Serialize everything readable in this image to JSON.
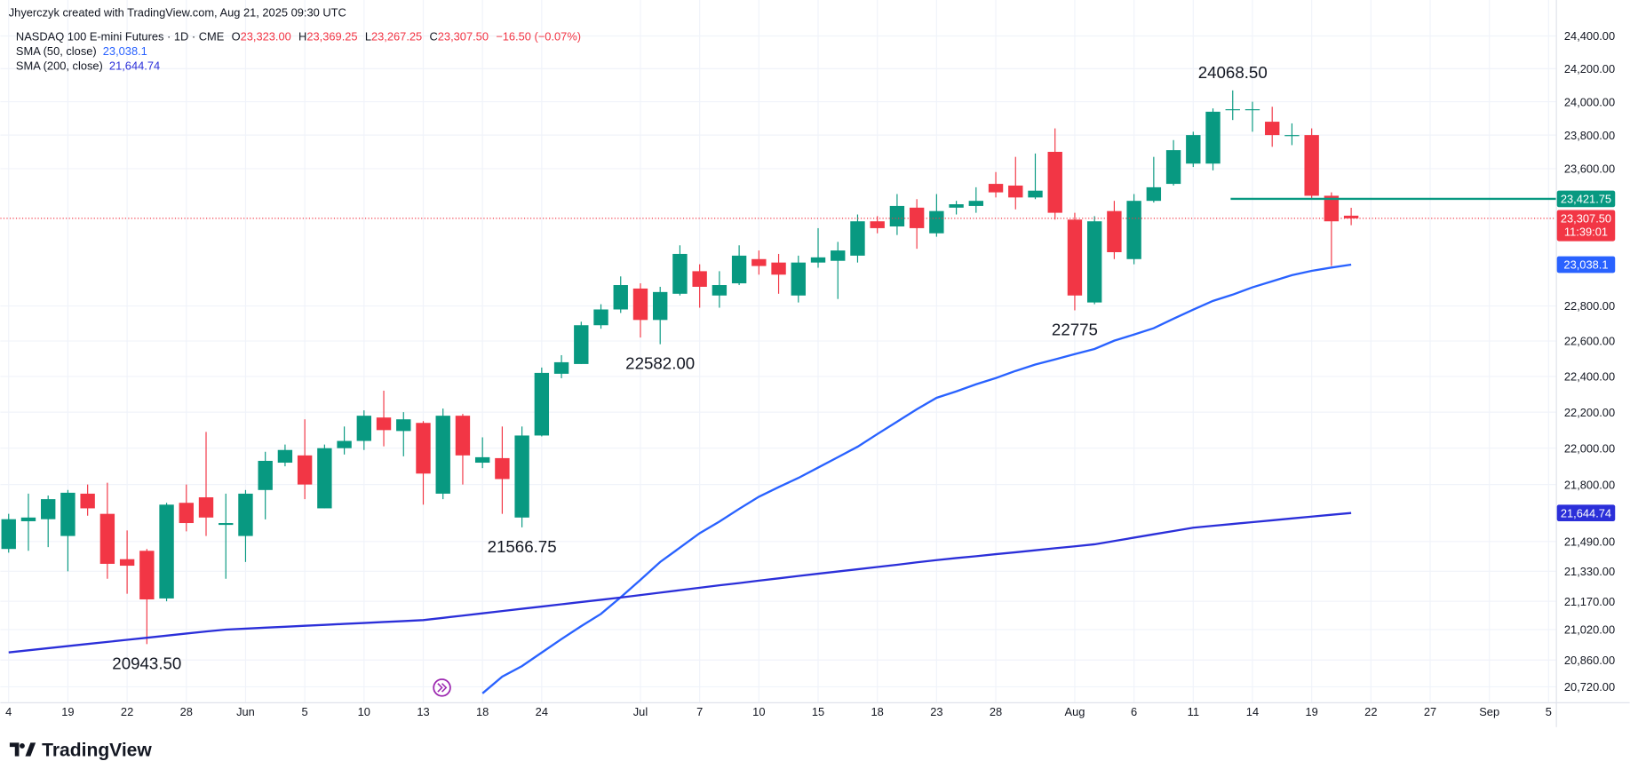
{
  "header": {
    "author_line": "Jhyerczyk created with TradingView.com, Aug 21, 2025 09:30 UTC"
  },
  "branding": "TradingView",
  "chart_data": {
    "type": "candlestick",
    "legend": {
      "symbol": "NASDAQ 100 E-mini Futures · 1D · CME",
      "fields": [
        {
          "key": "O",
          "text": "23,323.00"
        },
        {
          "key": "H",
          "text": "23,369.25"
        },
        {
          "key": "L",
          "text": "23,267.25"
        },
        {
          "key": "C",
          "text": "23,307.50"
        }
      ],
      "change": "−16.50 (−0.07%)"
    },
    "up_color": "#089981",
    "down_color": "#f23645",
    "log_scale": true,
    "grid": true,
    "ylim": [
      20640,
      24570
    ],
    "yticks": [
      {
        "value": 24400,
        "label": "24,400.00"
      },
      {
        "value": 24200,
        "label": "24,200.00"
      },
      {
        "value": 24000,
        "label": "24,000.00"
      },
      {
        "value": 23800,
        "label": "23,800.00"
      },
      {
        "value": 23600,
        "label": "23,600.00"
      },
      {
        "value": 22800,
        "label": "22,800.00"
      },
      {
        "value": 22600,
        "label": "22,600.00"
      },
      {
        "value": 22400,
        "label": "22,400.00"
      },
      {
        "value": 22200,
        "label": "22,200.00"
      },
      {
        "value": 22000,
        "label": "22,000.00"
      },
      {
        "value": 21800,
        "label": "21,800.00"
      },
      {
        "value": 21490,
        "label": "21,490.00"
      },
      {
        "value": 21330,
        "label": "21,330.00"
      },
      {
        "value": 21170,
        "label": "21,170.00"
      },
      {
        "value": 21020,
        "label": "21,020.00"
      },
      {
        "value": 20860,
        "label": "20,860.00"
      },
      {
        "value": 20720,
        "label": "20,720.00"
      }
    ],
    "categories": [
      "4",
      null,
      null,
      "19",
      null,
      null,
      "22",
      null,
      null,
      "28",
      null,
      null,
      "Jun",
      null,
      null,
      "5",
      null,
      null,
      "10",
      null,
      null,
      "13",
      null,
      null,
      "18",
      null,
      null,
      "24",
      null,
      null,
      null,
      null,
      "Jul",
      null,
      null,
      "7",
      null,
      null,
      "10",
      null,
      null,
      "15",
      null,
      null,
      "18",
      null,
      null,
      "23",
      null,
      null,
      "28",
      null,
      null,
      null,
      "Aug",
      null,
      null,
      "6",
      null,
      null,
      "11",
      null,
      null,
      "14",
      null,
      null,
      "19",
      null,
      null,
      "22",
      null,
      null,
      "27",
      null,
      null,
      "Sep",
      null,
      null,
      "5"
    ],
    "open": [
      21450,
      21600,
      21611,
      21520,
      21750,
      21640,
      21395,
      21440,
      21185,
      21700,
      21730,
      21580,
      21520,
      21770,
      21920,
      21960,
      21670,
      22000,
      22040,
      22170,
      22095,
      22140,
      21750,
      22180,
      21920,
      21945,
      21620,
      22070,
      22415,
      22470,
      22690,
      22780,
      22900,
      22720,
      22870,
      23000,
      22860,
      22930,
      23070,
      23050,
      22860,
      23050,
      23060,
      23090,
      23290,
      23260,
      23370,
      23220,
      23370,
      23380,
      23510,
      23500,
      23430,
      23700,
      23300,
      22820,
      23350,
      23070,
      23410,
      23510,
      23630,
      23630,
      23950,
      23950,
      23880,
      23795,
      23800,
      23440,
      23323,
      null,
      null,
      null,
      null,
      null,
      null,
      null,
      null,
      null,
      null
    ],
    "high": [
      21640,
      21750,
      21740,
      21770,
      21800,
      21810,
      21550,
      21450,
      21700,
      21800,
      22090,
      21750,
      21770,
      21980,
      22020,
      22160,
      22020,
      22120,
      22210,
      22320,
      22200,
      22150,
      22220,
      22190,
      22060,
      22120,
      22120,
      22450,
      22520,
      22710,
      22810,
      22970,
      22930,
      22910,
      23150,
      23040,
      23000,
      23150,
      23120,
      23100,
      23090,
      23250,
      23170,
      23330,
      23320,
      23450,
      23420,
      23450,
      23410,
      23490,
      23580,
      23670,
      23690,
      23840,
      23340,
      23320,
      23410,
      23450,
      23670,
      23770,
      23820,
      23960,
      24068.5,
      24000,
      23970,
      23870,
      23840,
      23460,
      23369.25,
      null,
      null,
      null,
      null,
      null,
      null,
      null,
      null,
      null,
      null
    ],
    "low": [
      21430,
      21440,
      21460,
      21330,
      21630,
      21290,
      21210,
      20943.5,
      21170,
      21545,
      21520,
      21290,
      21380,
      21610,
      21900,
      21720,
      21670,
      21965,
      21990,
      22010,
      21955,
      21690,
      21720,
      21800,
      21890,
      21640,
      21566.75,
      22065,
      22390,
      22470,
      22670,
      22760,
      22620,
      22582,
      22860,
      22790,
      22790,
      22920,
      22980,
      22870,
      22820,
      23020,
      22840,
      23050,
      23220,
      23210,
      23130,
      23200,
      23330,
      23340,
      23430,
      23360,
      23420,
      23300,
      22775,
      22810,
      23070,
      23040,
      23400,
      23500,
      23610,
      23590,
      23890,
      23820,
      23730,
      23740,
      23420,
      23030,
      23267.25,
      null,
      null,
      null,
      null,
      null,
      null,
      null,
      null,
      null,
      null
    ],
    "close": [
      21611,
      21620,
      21720,
      21755,
      21670,
      21370,
      21360,
      21180,
      21690,
      21590,
      21620,
      21590,
      21750,
      21930,
      21990,
      21800,
      22000,
      22040,
      22180,
      22100,
      22160,
      21860,
      22180,
      21960,
      21950,
      21830,
      22070,
      22420,
      22480,
      22690,
      22780,
      22920,
      22720,
      22880,
      23100,
      22910,
      22920,
      23090,
      23030,
      22980,
      23050,
      23080,
      23120,
      23290,
      23250,
      23380,
      23250,
      23350,
      23390,
      23410,
      23460,
      23430,
      23470,
      23340,
      22860,
      23290,
      23110,
      23410,
      23490,
      23710,
      23800,
      23940,
      23955,
      23955,
      23800,
      23800,
      23440,
      23290,
      23307.5,
      null,
      null,
      null,
      null,
      null,
      null,
      null,
      null,
      null,
      null
    ],
    "series": [
      {
        "name": "SMA (50, close)",
        "color": "#2962ff",
        "last_label": "23,038.1",
        "values": [
          null,
          null,
          null,
          null,
          null,
          null,
          null,
          null,
          null,
          null,
          null,
          null,
          null,
          null,
          null,
          null,
          null,
          null,
          null,
          null,
          null,
          null,
          null,
          null,
          20686,
          20773,
          20828,
          20899,
          20970,
          21038,
          21103,
          21191,
          21284,
          21380,
          21457,
          21535,
          21598,
          21667,
          21733,
          21786,
          21836,
          21893,
          21950,
          22008,
          22078,
          22147,
          22216,
          22280,
          22316,
          22356,
          22391,
          22431,
          22467,
          22496,
          22526,
          22555,
          22602,
          22637,
          22673,
          22727,
          22779,
          22829,
          22865,
          22907,
          22942,
          22977,
          23002,
          23021,
          23038.1,
          null,
          null,
          null,
          null,
          null,
          null,
          null,
          null,
          null,
          null
        ]
      },
      {
        "name": "SMA (200, close)",
        "color": "#2b2fd9",
        "last_label": "21,644.74",
        "values": [
          20900,
          20911,
          20922,
          20933,
          20944,
          20955,
          20966,
          20977,
          20988,
          20999,
          21010,
          21020,
          21025,
          21030,
          21035,
          21040,
          21045,
          21050,
          21055,
          21060,
          21065,
          21070,
          21082,
          21094,
          21106,
          21118,
          21130,
          21142,
          21154,
          21166,
          21178,
          21190,
          21203,
          21216,
          21229,
          21242,
          21255,
          21267,
          21280,
          21292,
          21305,
          21317,
          21329,
          21341,
          21353,
          21365,
          21378,
          21390,
          21401,
          21411,
          21422,
          21432,
          21443,
          21454,
          21464,
          21475,
          21493,
          21511,
          21529,
          21547,
          21565,
          21575,
          21585,
          21595,
          21605,
          21615,
          21625,
          21635,
          21644.74,
          null,
          null,
          null,
          null,
          null,
          null,
          null,
          null,
          null,
          null
        ]
      }
    ],
    "last_price": {
      "value": 23307.5,
      "label": "23,307.50",
      "countdown": "11:39:01"
    },
    "level": {
      "value": 23421.75,
      "label": "23,421.75",
      "color": "#089981"
    },
    "annotations": [
      {
        "label": "24068.50",
        "value": 24068.5
      },
      {
        "label": "22775",
        "value": 22775
      },
      {
        "label": "22582.00",
        "value": 22582
      },
      {
        "label": "21566.75",
        "value": 21566.75
      },
      {
        "label": "20943.50",
        "value": 20943.5
      }
    ]
  }
}
